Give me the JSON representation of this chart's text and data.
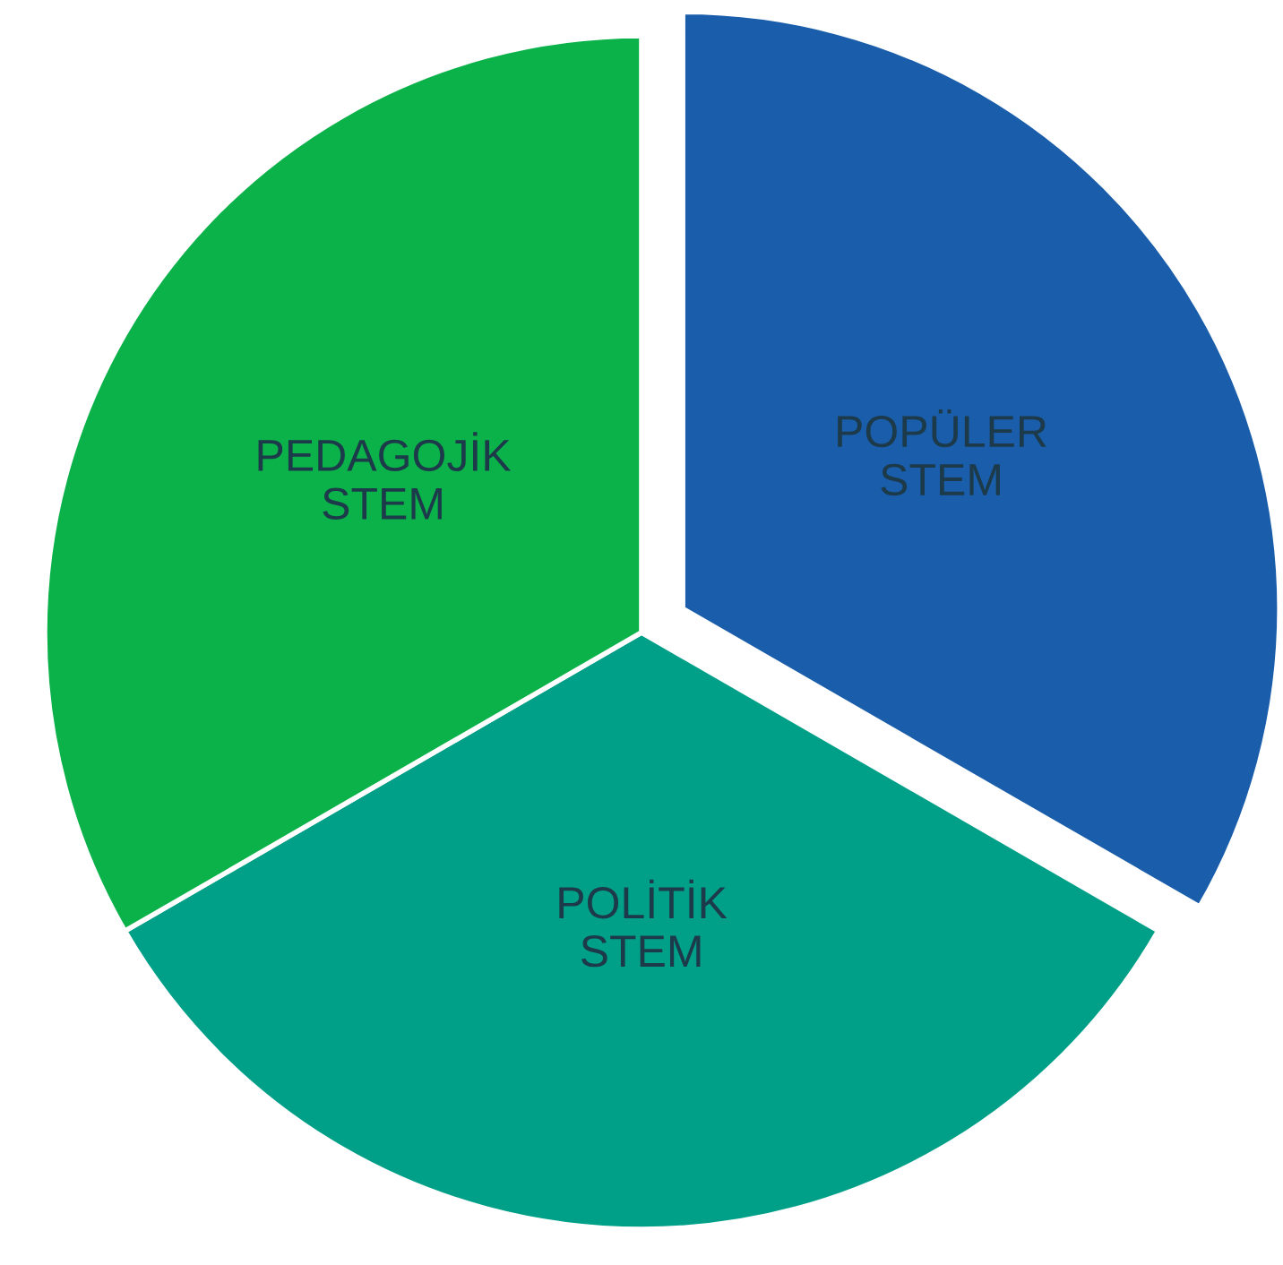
{
  "chart_data": {
    "type": "pie",
    "categories": [
      "POPÜLER\nSTEM",
      "POLİTİK\nSTEM",
      "PEDAGOJİK\nSTEM"
    ],
    "values": [
      33.33,
      33.33,
      33.34
    ],
    "colors": [
      "#1a5eab",
      "#00a088",
      "#0bb24a"
    ]
  }
}
